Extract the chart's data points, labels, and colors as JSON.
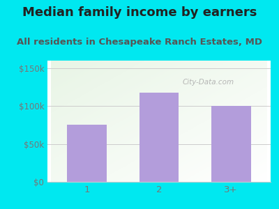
{
  "title": "Median family income by earners",
  "subtitle": "All residents in Chesapeake Ranch Estates, MD",
  "categories": [
    "1",
    "2",
    "3+"
  ],
  "values": [
    75000,
    118000,
    100000
  ],
  "bar_color": "#b39ddb",
  "outer_bg_color": "#00e8f0",
  "title_fontsize": 13,
  "subtitle_fontsize": 9.5,
  "title_color": "#222222",
  "subtitle_color": "#555555",
  "ylabel_ticks": [
    0,
    50000,
    100000,
    150000
  ],
  "ylabel_labels": [
    "$0",
    "$50k",
    "$100k",
    "$150k"
  ],
  "ylim": [
    0,
    160000
  ],
  "watermark": "City-Data.com",
  "watermark_color": "#aaaaaa",
  "tick_color": "#777777",
  "grid_color": "#cccccc",
  "plot_bg_colors": [
    "#ffffff",
    "#e8f5e5"
  ]
}
